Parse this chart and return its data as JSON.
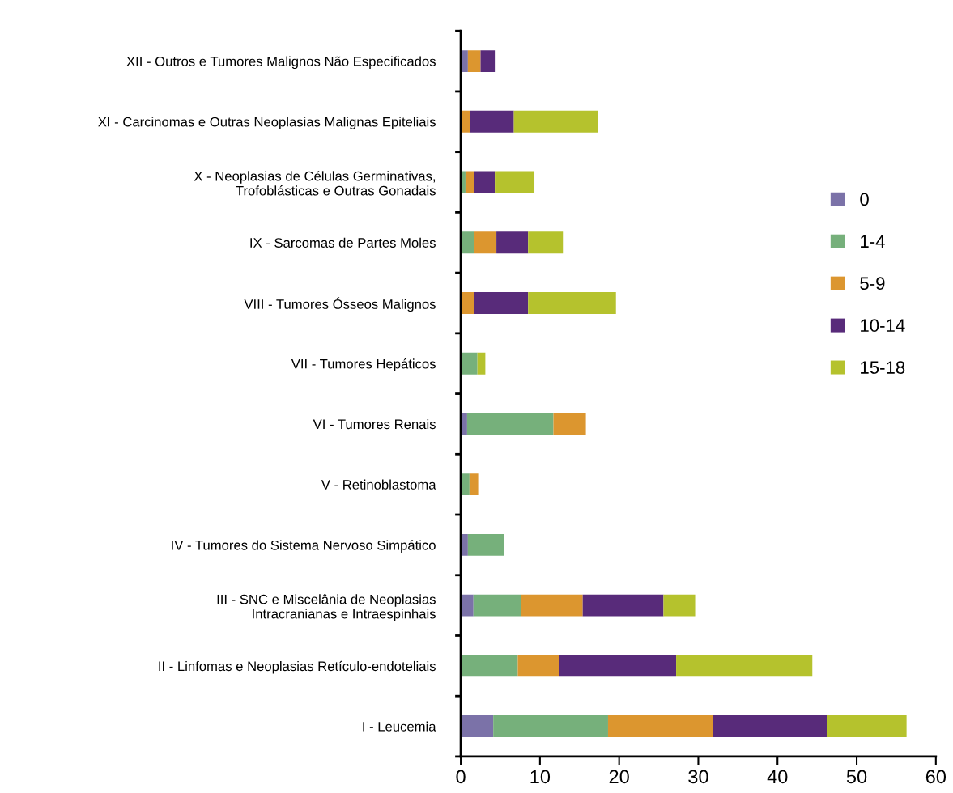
{
  "chart_data": {
    "type": "bar",
    "orientation": "horizontal",
    "stacked": true,
    "categories": [
      "XII - Outros e Tumores Malignos Não Especificados",
      "XI - Carcinomas e Outras Neoplasias Malignas Epiteliais",
      "X - Neoplasias de Células Germinativas,\nTrofoblásticas e Outras Gonadais",
      "IX - Sarcomas de Partes Moles",
      "VIII - Tumores Ósseos Malignos",
      "VII - Tumores Hepáticos",
      "VI - Tumores Renais",
      "V - Retinoblastoma",
      "IV - Tumores do Sistema Nervoso Simpático",
      "III - SNC e Miscelânia de Neoplasias\nIntracranianas e Intraespinhais",
      "II - Linfomas e Neoplasias Retículo-endoteliais",
      "I - Leucemia"
    ],
    "series": [
      {
        "name": "0",
        "color": "#7b72a8",
        "values": [
          0.9,
          0,
          0,
          0,
          0,
          0,
          0.8,
          0,
          0.9,
          1.6,
          0,
          4.1
        ]
      },
      {
        "name": "1-4",
        "color": "#76b07b",
        "values": [
          0,
          0,
          0.6,
          1.7,
          0,
          2.1,
          10.9,
          1.1,
          4.6,
          6.0,
          7.2,
          14.5
        ]
      },
      {
        "name": "5-9",
        "color": "#dc962f",
        "values": [
          1.6,
          1.2,
          1.1,
          2.8,
          1.7,
          0,
          4.1,
          1.1,
          0,
          7.8,
          5.2,
          13.2
        ]
      },
      {
        "name": "10-14",
        "color": "#582b7a",
        "values": [
          1.8,
          5.5,
          2.6,
          4.0,
          6.8,
          0,
          0,
          0,
          0,
          10.2,
          14.8,
          14.5
        ]
      },
      {
        "name": "15-18",
        "color": "#b5c22d",
        "values": [
          0,
          10.6,
          5.0,
          4.4,
          11.1,
          1.0,
          0,
          0,
          0,
          4.0,
          17.2,
          10.0
        ]
      }
    ],
    "xlim": [
      0,
      60
    ],
    "xticks": [
      0,
      10,
      20,
      30,
      40,
      50,
      60
    ],
    "grid": false,
    "legend": "right"
  }
}
